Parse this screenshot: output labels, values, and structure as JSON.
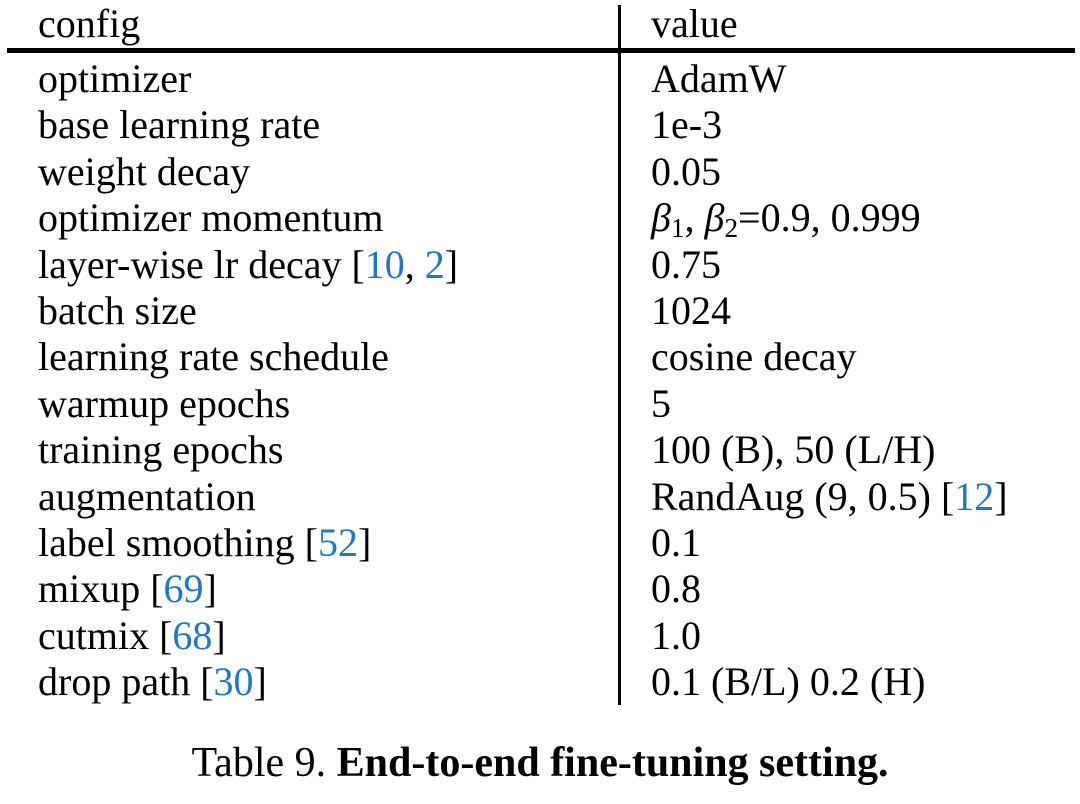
{
  "page": {
    "background": "#ffffff"
  },
  "colors": {
    "text": "#000000",
    "citation": "#1e78c8"
  },
  "table": {
    "header": {
      "config": "config",
      "value": "value"
    },
    "rows": [
      {
        "config": [
          [
            "t",
            "optimizer"
          ]
        ],
        "value": [
          [
            "t",
            "AdamW"
          ]
        ]
      },
      {
        "config": [
          [
            "t",
            "base learning rate"
          ]
        ],
        "value": [
          [
            "t",
            "1e-3"
          ]
        ]
      },
      {
        "config": [
          [
            "t",
            "weight decay"
          ]
        ],
        "value": [
          [
            "t",
            "0.05"
          ]
        ]
      },
      {
        "config": [
          [
            "t",
            "optimizer momentum"
          ]
        ],
        "value": [
          [
            "i",
            "β"
          ],
          [
            "s",
            "1"
          ],
          [
            "t",
            ", "
          ],
          [
            "i",
            "β"
          ],
          [
            "s",
            "2"
          ],
          [
            "t",
            "=0.9, 0.999"
          ]
        ]
      },
      {
        "config": [
          [
            "t",
            "layer-wise lr decay ["
          ],
          [
            "c",
            "10"
          ],
          [
            "t",
            ", "
          ],
          [
            "c",
            "2"
          ],
          [
            "t",
            "]"
          ]
        ],
        "value": [
          [
            "t",
            "0.75"
          ]
        ]
      },
      {
        "config": [
          [
            "t",
            "batch size"
          ]
        ],
        "value": [
          [
            "t",
            "1024"
          ]
        ]
      },
      {
        "config": [
          [
            "t",
            "learning rate schedule"
          ]
        ],
        "value": [
          [
            "t",
            "cosine decay"
          ]
        ]
      },
      {
        "config": [
          [
            "t",
            "warmup epochs"
          ]
        ],
        "value": [
          [
            "t",
            "5"
          ]
        ]
      },
      {
        "config": [
          [
            "t",
            "training epochs"
          ]
        ],
        "value": [
          [
            "t",
            "100 (B), 50 (L/H)"
          ]
        ]
      },
      {
        "config": [
          [
            "t",
            "augmentation"
          ]
        ],
        "value": [
          [
            "t",
            "RandAug (9, 0.5) ["
          ],
          [
            "c",
            "12"
          ],
          [
            "t",
            "]"
          ]
        ]
      },
      {
        "config": [
          [
            "t",
            "label smoothing ["
          ],
          [
            "c",
            "52"
          ],
          [
            "t",
            "]"
          ]
        ],
        "value": [
          [
            "t",
            "0.1"
          ]
        ]
      },
      {
        "config": [
          [
            "t",
            "mixup ["
          ],
          [
            "c",
            "69"
          ],
          [
            "t",
            "]"
          ]
        ],
        "value": [
          [
            "t",
            "0.8"
          ]
        ]
      },
      {
        "config": [
          [
            "t",
            "cutmix ["
          ],
          [
            "c",
            "68"
          ],
          [
            "t",
            "]"
          ]
        ],
        "value": [
          [
            "t",
            "1.0"
          ]
        ]
      },
      {
        "config": [
          [
            "t",
            "drop path ["
          ],
          [
            "c",
            "30"
          ],
          [
            "t",
            "]"
          ]
        ],
        "value": [
          [
            "t",
            "0.1 (B/L) 0.2 (H)"
          ]
        ]
      }
    ]
  },
  "caption": {
    "label": "Table 9.",
    "title": "End-to-end fine-tuning setting."
  }
}
